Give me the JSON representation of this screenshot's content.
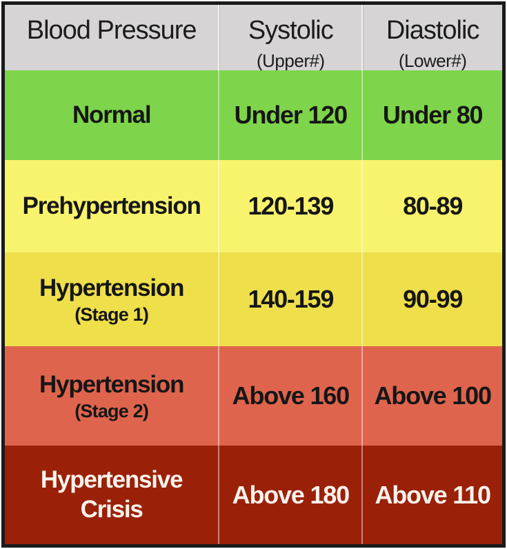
{
  "table": {
    "header": {
      "col1": {
        "title": "Blood Pressure",
        "subtitle": ""
      },
      "col2": {
        "title": "Systolic",
        "subtitle": "(Upper#)"
      },
      "col3": {
        "title": "Diastolic",
        "subtitle": "(Lower#)"
      },
      "background": "#d6d4d5",
      "text_color": "#1c1c1c"
    },
    "rows": [
      {
        "category": "Normal",
        "category_sub": "",
        "systolic": "Under 120",
        "diastolic": "Under 80",
        "color": "#7ed44a",
        "text_color": "#161616"
      },
      {
        "category": "Prehypertension",
        "category_sub": "",
        "systolic": "120-139",
        "diastolic": "80-89",
        "color": "#f8f36d",
        "text_color": "#161616"
      },
      {
        "category": "Hypertension",
        "category_sub": "(Stage 1)",
        "systolic": "140-159",
        "diastolic": "90-99",
        "color": "#eedf4b",
        "text_color": "#161616"
      },
      {
        "category": "Hypertension",
        "category_sub": "(Stage 2)",
        "systolic": "Above 160",
        "diastolic": "Above 100",
        "color": "#df644d",
        "text_color": "#161616"
      },
      {
        "category": "Hypertensive Crisis",
        "category_sub": "",
        "systolic": "Above 180",
        "diastolic": "Above 110",
        "color": "#9a2108",
        "text_color": "#faf3ec"
      }
    ],
    "border_color": "#1a1a1a"
  },
  "chart_data": {
    "type": "table",
    "title": "Blood Pressure",
    "columns": [
      "Blood Pressure",
      "Systolic (Upper#)",
      "Diastolic (Lower#)"
    ],
    "rows": [
      [
        "Normal",
        "Under 120",
        "Under 80"
      ],
      [
        "Prehypertension",
        "120-139",
        "80-89"
      ],
      [
        "Hypertension (Stage 1)",
        "140-159",
        "90-99"
      ],
      [
        "Hypertension (Stage 2)",
        "Above 160",
        "Above 100"
      ],
      [
        "Hypertensive Crisis",
        "Above 180",
        "Above 110"
      ]
    ],
    "row_colors": [
      "#7ed44a",
      "#f8f36d",
      "#eedf4b",
      "#df644d",
      "#9a2108"
    ],
    "header_color": "#d6d4d5"
  }
}
